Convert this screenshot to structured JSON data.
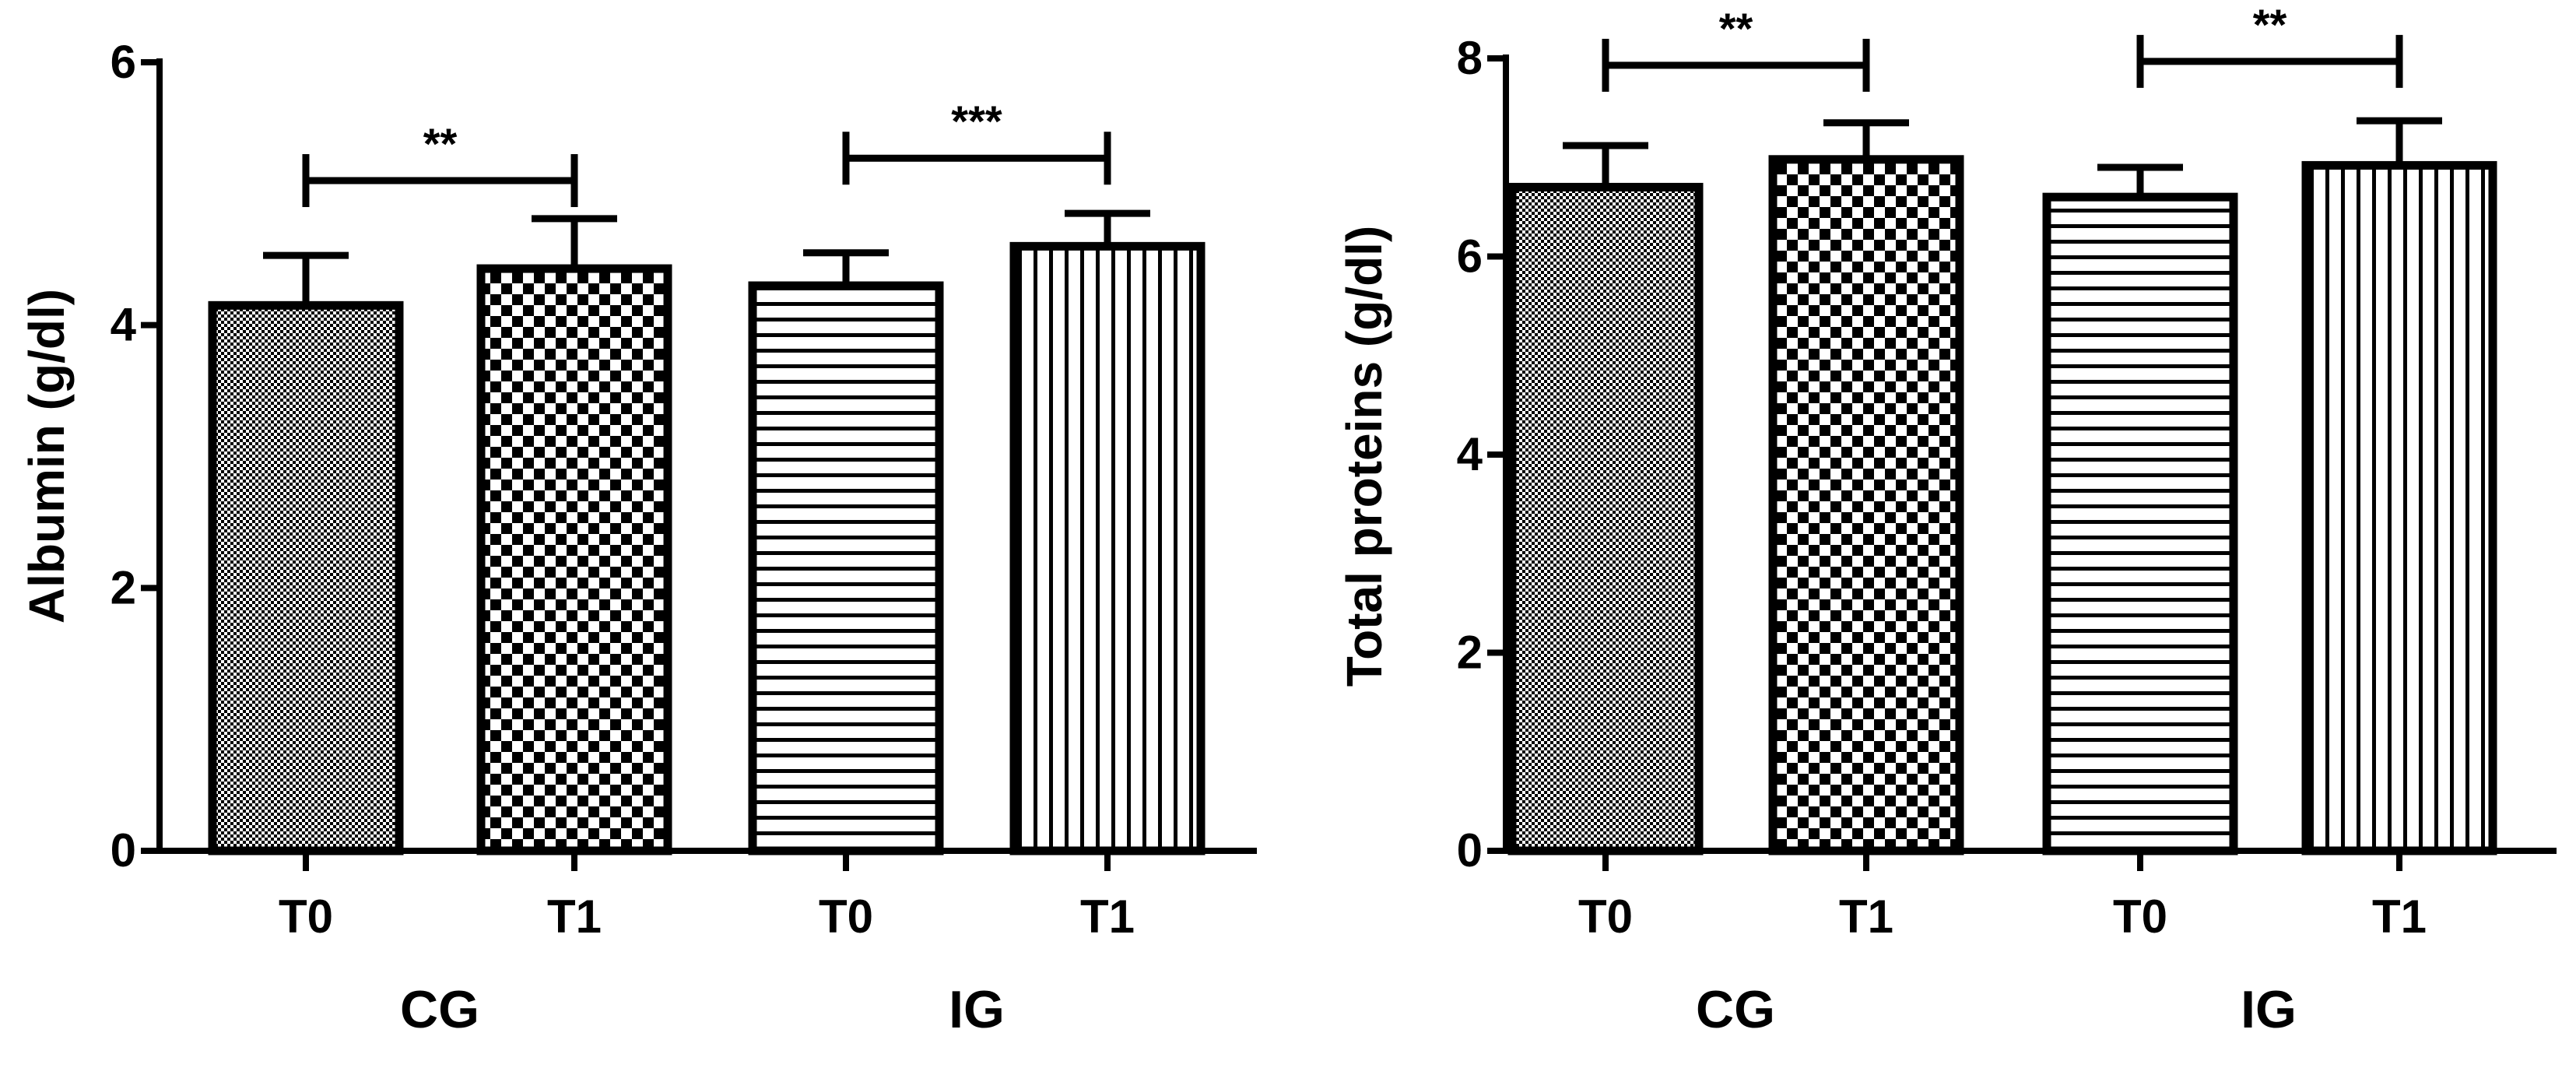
{
  "chart_data": [
    {
      "type": "bar",
      "ylabel": "Albumin (g/dl)",
      "xlabel": "",
      "ylim": [
        0,
        6
      ],
      "yticks": [
        0,
        2,
        4,
        6
      ],
      "tick_labels": [
        "0",
        "2",
        "4",
        "6"
      ],
      "groups": [
        "CG",
        "IG"
      ],
      "categories": [
        "T0",
        "T1",
        "T0",
        "T1"
      ],
      "values": [
        4.15,
        4.43,
        4.3,
        4.6
      ],
      "errors": [
        0.38,
        0.38,
        0.25,
        0.25
      ],
      "patterns": [
        "fine-dots",
        "checker",
        "h-lines",
        "v-lines"
      ],
      "significance": [
        {
          "from": 0,
          "to": 1,
          "label": "**",
          "y": 5.1
        },
        {
          "from": 2,
          "to": 3,
          "label": "***",
          "y": 5.27
        }
      ]
    },
    {
      "type": "bar",
      "ylabel": "Total proteins (g/dl)",
      "xlabel": "",
      "ylim": [
        0,
        8
      ],
      "yticks": [
        0,
        2,
        4,
        6,
        8
      ],
      "tick_labels": [
        "0",
        "2",
        "4",
        "6",
        "8"
      ],
      "groups": [
        "CG",
        "IG"
      ],
      "categories": [
        "T0",
        "T1",
        "T0",
        "T1"
      ],
      "values": [
        6.7,
        6.98,
        6.6,
        6.92
      ],
      "errors": [
        0.42,
        0.37,
        0.3,
        0.45
      ],
      "patterns": [
        "fine-dots",
        "checker",
        "h-lines",
        "v-lines"
      ],
      "significance": [
        {
          "from": 0,
          "to": 1,
          "label": "**",
          "y": 7.93
        },
        {
          "from": 2,
          "to": 3,
          "label": "**",
          "y": 7.97
        }
      ]
    }
  ]
}
